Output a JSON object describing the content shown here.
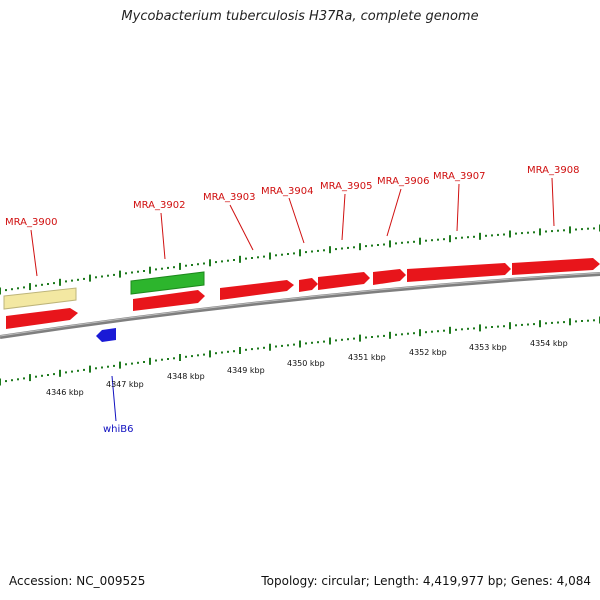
{
  "title": "Mycobacterium tuberculosis H37Ra, complete genome",
  "footer": {
    "accession": "Accession: NC_009525",
    "summary": "Topology: circular; Length: 4,419,977 bp; Genes: 4,084"
  },
  "colors": {
    "cds": "#e8151b",
    "rna": "#2db52d",
    "misc": "#f3e8a2",
    "reverse": "#1a1ad6",
    "backbone": "#808080",
    "ticks": "#1e7a1e",
    "label_forward": "#d01010",
    "label_reverse": "#1010c0"
  },
  "axis_labels": [
    "4346 kbp",
    "4347 kbp",
    "4348 kbp",
    "4349 kbp",
    "4350 kbp",
    "4351 kbp",
    "4352 kbp",
    "4353 kbp",
    "4354 kbp"
  ],
  "gene_labels": [
    {
      "text": "MRA_3900",
      "strand": "forward"
    },
    {
      "text": "MRA_3902",
      "strand": "forward"
    },
    {
      "text": "MRA_3903",
      "strand": "forward"
    },
    {
      "text": "MRA_3904",
      "strand": "forward"
    },
    {
      "text": "MRA_3905",
      "strand": "forward"
    },
    {
      "text": "MRA_3906",
      "strand": "forward"
    },
    {
      "text": "MRA_3907",
      "strand": "forward"
    },
    {
      "text": "MRA_3908",
      "strand": "forward"
    },
    {
      "text": "whiB6",
      "strand": "reverse"
    }
  ]
}
